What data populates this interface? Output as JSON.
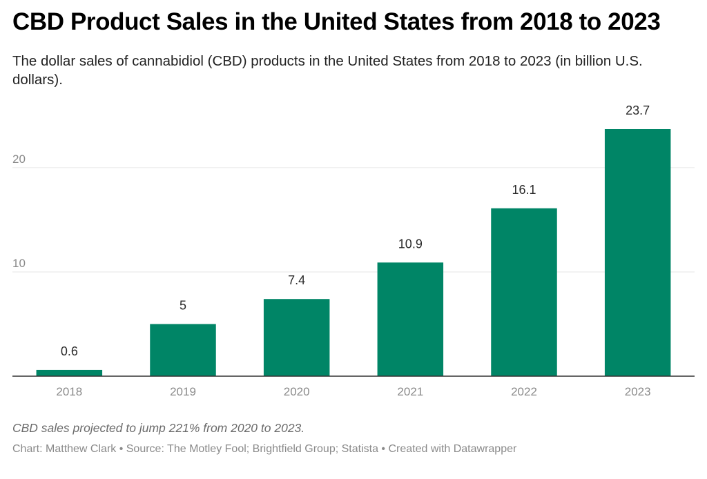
{
  "header": {
    "title": "CBD Product Sales in the United States from 2018 to 2023",
    "subtitle": "The dollar sales of cannabidiol (CBD) products in the United States from 2018 to 2023 (in billion U.S. dollars)."
  },
  "footer": {
    "note": "CBD sales projected to jump 221% from 2020 to 2023.",
    "credits": "Chart: Matthew Clark • Source: The Motley Fool; Brightfield Group; Statista • Created with Datawrapper"
  },
  "chart_data": {
    "type": "bar",
    "title": "CBD Product Sales in the United States from 2018 to 2023",
    "subtitle": "The dollar sales of cannabidiol (CBD) products in the United States from 2018 to 2023 (in billion U.S. dollars).",
    "categories": [
      "2018",
      "2019",
      "2020",
      "2021",
      "2022",
      "2023"
    ],
    "values": [
      0.6,
      5,
      7.4,
      10.9,
      16.1,
      23.7
    ],
    "value_labels": [
      "0.6",
      "5",
      "7.4",
      "10.9",
      "16.1",
      "23.7"
    ],
    "yticks": [
      "10",
      "20"
    ],
    "ylim": [
      0,
      23.7
    ],
    "xlabel": "",
    "ylabel": "",
    "grid": true,
    "legend": "none",
    "bar_color": "#008566",
    "gridline_color": "#e6e6e6",
    "axis_color": "#333333"
  }
}
